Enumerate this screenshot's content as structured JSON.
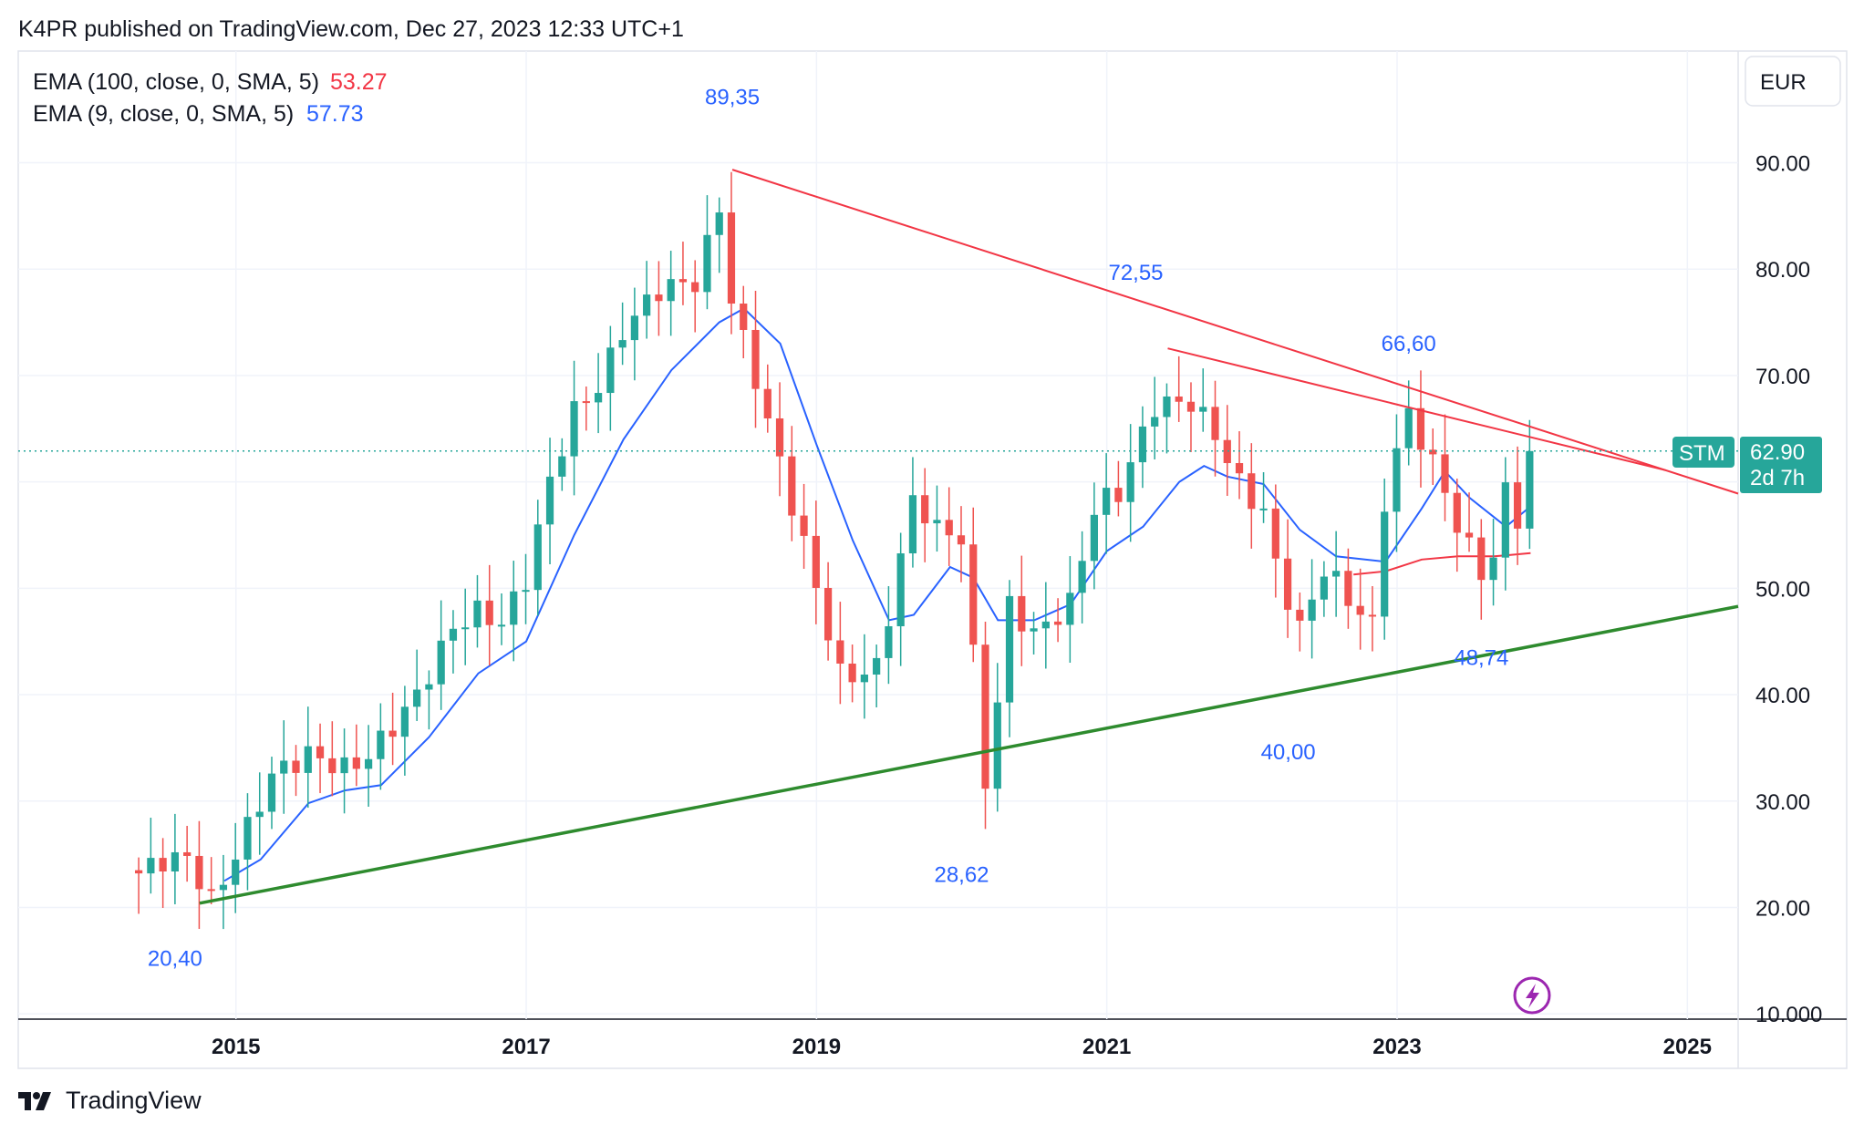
{
  "header": {
    "published_line": "K4PR published on TradingView.com, Dec 27, 2023 12:33 UTC+1"
  },
  "footer": {
    "brand": "TradingView",
    "logo_icon": "tradingview-logo-icon"
  },
  "indicators": [
    {
      "label": "EMA (100, close, 0, SMA, 5)",
      "value": "53.27",
      "color": "#f23645"
    },
    {
      "label": "EMA (9, close, 0, SMA, 5)",
      "value": "57.73",
      "color": "#2962ff"
    }
  ],
  "currency": "EUR",
  "price_badge": {
    "symbol": "STM",
    "price": "62.90",
    "countdown": "2d 7h"
  },
  "annotations": [
    {
      "text": "89,35",
      "date": "2018.42",
      "y": 95.5
    },
    {
      "text": "72,55",
      "date": "2021.2",
      "y": 79
    },
    {
      "text": "66,60",
      "date": "2023.08",
      "y": 72.3
    },
    {
      "text": "48,74",
      "date": "2023.58",
      "y": 42.8
    },
    {
      "text": "40,00",
      "date": "2022.25",
      "y": 33.9
    },
    {
      "text": "28,62",
      "date": "2020.0",
      "y": 22.4
    },
    {
      "text": "20,40",
      "date": "2014.58",
      "y": 14.5
    }
  ],
  "chart_data": {
    "type": "candlestick",
    "interval": "monthly",
    "xlim": [
      2013.5,
      2025.35
    ],
    "ylim": [
      9.5,
      100.5
    ],
    "yticks": [
      10,
      20,
      30,
      40,
      50,
      60,
      70,
      80,
      90
    ],
    "ytick_labels": [
      "10.000",
      "20.00",
      "30.00",
      "40.00",
      "50.00",
      "60.00",
      "70.00",
      "80.00",
      "90.00"
    ],
    "xticks": [
      2015,
      2017,
      2019,
      2021,
      2023,
      2025
    ],
    "xtick_labels": [
      "2015",
      "2017",
      "2019",
      "2021",
      "2023",
      "2025"
    ],
    "last_price": 62.9,
    "colors": {
      "up": "#26a69a",
      "down": "#ef5350",
      "trend_up": "#2e8b2e",
      "trend_down": "#f23645",
      "ema_fast": "#2962ff",
      "ema_slow": "#f23645",
      "annotation": "#2962ff"
    },
    "ohlc_anchor_close": [
      [
        "2014.33",
        23.2
      ],
      [
        "2014.5",
        24.5
      ],
      [
        "2014.67",
        24.6
      ],
      [
        "2014.83",
        20.6
      ],
      [
        "2014.92",
        22.7
      ],
      [
        "2015.25",
        32.5
      ],
      [
        "2015.5",
        34.4
      ],
      [
        "2015.75",
        33.0
      ],
      [
        "2015.92",
        34.3
      ],
      [
        "2016.25",
        40.0
      ],
      [
        "2016.5",
        46.4
      ],
      [
        "2016.67",
        47.8
      ],
      [
        "2016.83",
        46.7
      ],
      [
        "2017.0",
        51.0
      ],
      [
        "2017.17",
        60.5
      ],
      [
        "2017.33",
        66.6
      ],
      [
        "2017.5",
        69.0
      ],
      [
        "2017.67",
        74.4
      ],
      [
        "2017.92",
        78.2
      ],
      [
        "2018.17",
        78.8
      ],
      [
        "2018.33",
        85.8
      ],
      [
        "2018.42",
        76.5
      ],
      [
        "2018.58",
        69.7
      ],
      [
        "2018.75",
        61.6
      ],
      [
        "2018.92",
        53.8
      ],
      [
        "2019.17",
        41.5
      ],
      [
        "2019.42",
        42.5
      ],
      [
        "2019.67",
        58.7
      ],
      [
        "2019.83",
        55.5
      ],
      [
        "2020.0",
        54.8
      ],
      [
        "2020.17",
        31.0
      ],
      [
        "2020.33",
        48.4
      ],
      [
        "2020.5",
        45.6
      ],
      [
        "2020.75",
        48.6
      ],
      [
        "2020.92",
        57.8
      ],
      [
        "2021.08",
        59.0
      ],
      [
        "2021.33",
        67.2
      ],
      [
        "2021.58",
        67.5
      ],
      [
        "2021.75",
        64.4
      ],
      [
        "2021.92",
        59.6
      ],
      [
        "2022.08",
        57.2
      ],
      [
        "2022.17",
        51.8
      ],
      [
        "2022.33",
        46.1
      ],
      [
        "2022.5",
        52.0
      ],
      [
        "2022.67",
        48.9
      ],
      [
        "2022.83",
        46.4
      ],
      [
        "2022.92",
        59.2
      ],
      [
        "2023.08",
        66.5
      ],
      [
        "2023.33",
        59.2
      ],
      [
        "2023.42",
        55.6
      ],
      [
        "2023.58",
        51.6
      ],
      [
        "2023.67",
        53.0
      ],
      [
        "2023.75",
        59.4
      ],
      [
        "2023.83",
        56.7
      ],
      [
        "2023.92",
        62.9
      ]
    ],
    "ema9_anchor": [
      [
        2014.92,
        22.5
      ],
      [
        2015.17,
        24.5
      ],
      [
        2015.5,
        29.8
      ],
      [
        2015.75,
        31.0
      ],
      [
        2016.0,
        31.5
      ],
      [
        2016.33,
        36.0
      ],
      [
        2016.67,
        42.0
      ],
      [
        2017.0,
        45.0
      ],
      [
        2017.33,
        55.0
      ],
      [
        2017.67,
        64.0
      ],
      [
        2018.0,
        70.5
      ],
      [
        2018.33,
        75.0
      ],
      [
        2018.5,
        76.3
      ],
      [
        2018.75,
        73.0
      ],
      [
        2019.0,
        63.5
      ],
      [
        2019.25,
        54.5
      ],
      [
        2019.5,
        47.0
      ],
      [
        2019.67,
        47.5
      ],
      [
        2019.92,
        52.0
      ],
      [
        2020.08,
        51.0
      ],
      [
        2020.25,
        47.0
      ],
      [
        2020.5,
        47.0
      ],
      [
        2020.75,
        48.5
      ],
      [
        2021.0,
        53.5
      ],
      [
        2021.25,
        55.8
      ],
      [
        2021.5,
        60.0
      ],
      [
        2021.67,
        61.5
      ],
      [
        2021.83,
        60.5
      ],
      [
        2022.08,
        59.8
      ],
      [
        2022.33,
        55.5
      ],
      [
        2022.58,
        53.0
      ],
      [
        2022.92,
        52.5
      ],
      [
        2023.17,
        57.5
      ],
      [
        2023.33,
        61.0
      ],
      [
        2023.5,
        58.5
      ],
      [
        2023.75,
        55.8
      ],
      [
        2023.92,
        57.7
      ]
    ],
    "ema100_anchor": [
      [
        2022.7,
        51.3
      ],
      [
        2022.92,
        51.6
      ],
      [
        2023.17,
        52.7
      ],
      [
        2023.42,
        53.0
      ],
      [
        2023.67,
        53.0
      ],
      [
        2023.92,
        53.3
      ]
    ],
    "trendlines": [
      {
        "name": "support",
        "from": [
          2014.75,
          20.4
        ],
        "to": [
          2025.35,
          48.3
        ],
        "color": "#2e8b2e",
        "width": 3.5
      },
      {
        "name": "resistance-main",
        "from": [
          2018.42,
          89.35
        ],
        "to": [
          2025.35,
          58.9
        ],
        "color": "#f23645",
        "width": 2
      },
      {
        "name": "resistance-short",
        "from": [
          2021.42,
          72.55
        ],
        "to": [
          2024.85,
          61.1
        ],
        "color": "#f23645",
        "width": 2
      }
    ]
  }
}
